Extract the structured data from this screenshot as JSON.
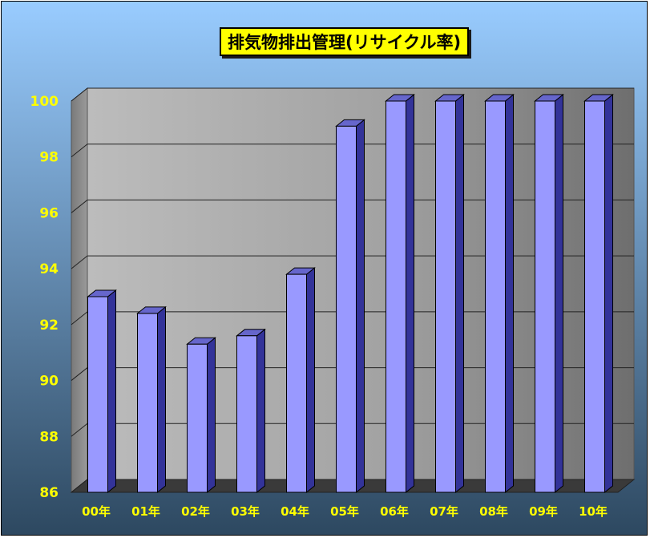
{
  "colors": {
    "background_top": "#99ccff",
    "background_bottom": "#2d4860",
    "bar_front": "#9999ff",
    "bar_side": "#333399",
    "bar_top": "#6666cc",
    "tick_text": "#ffff00",
    "title_bg": "#ffff00"
  },
  "chart_data": {
    "type": "bar",
    "title": "排気物排出管理(リサイクル率)",
    "categories": [
      "00年",
      "01年",
      "02年",
      "03年",
      "04年",
      "05年",
      "06年",
      "07年",
      "08年",
      "09年",
      "10年"
    ],
    "values": [
      93.0,
      92.4,
      91.3,
      91.6,
      93.8,
      99.1,
      100,
      100,
      100,
      100,
      100
    ],
    "ylim": [
      86,
      100
    ],
    "yticks": [
      "86",
      "88",
      "90",
      "92",
      "94",
      "96",
      "98",
      "100"
    ],
    "grid": true,
    "legend": "none",
    "style": "3d-column"
  }
}
